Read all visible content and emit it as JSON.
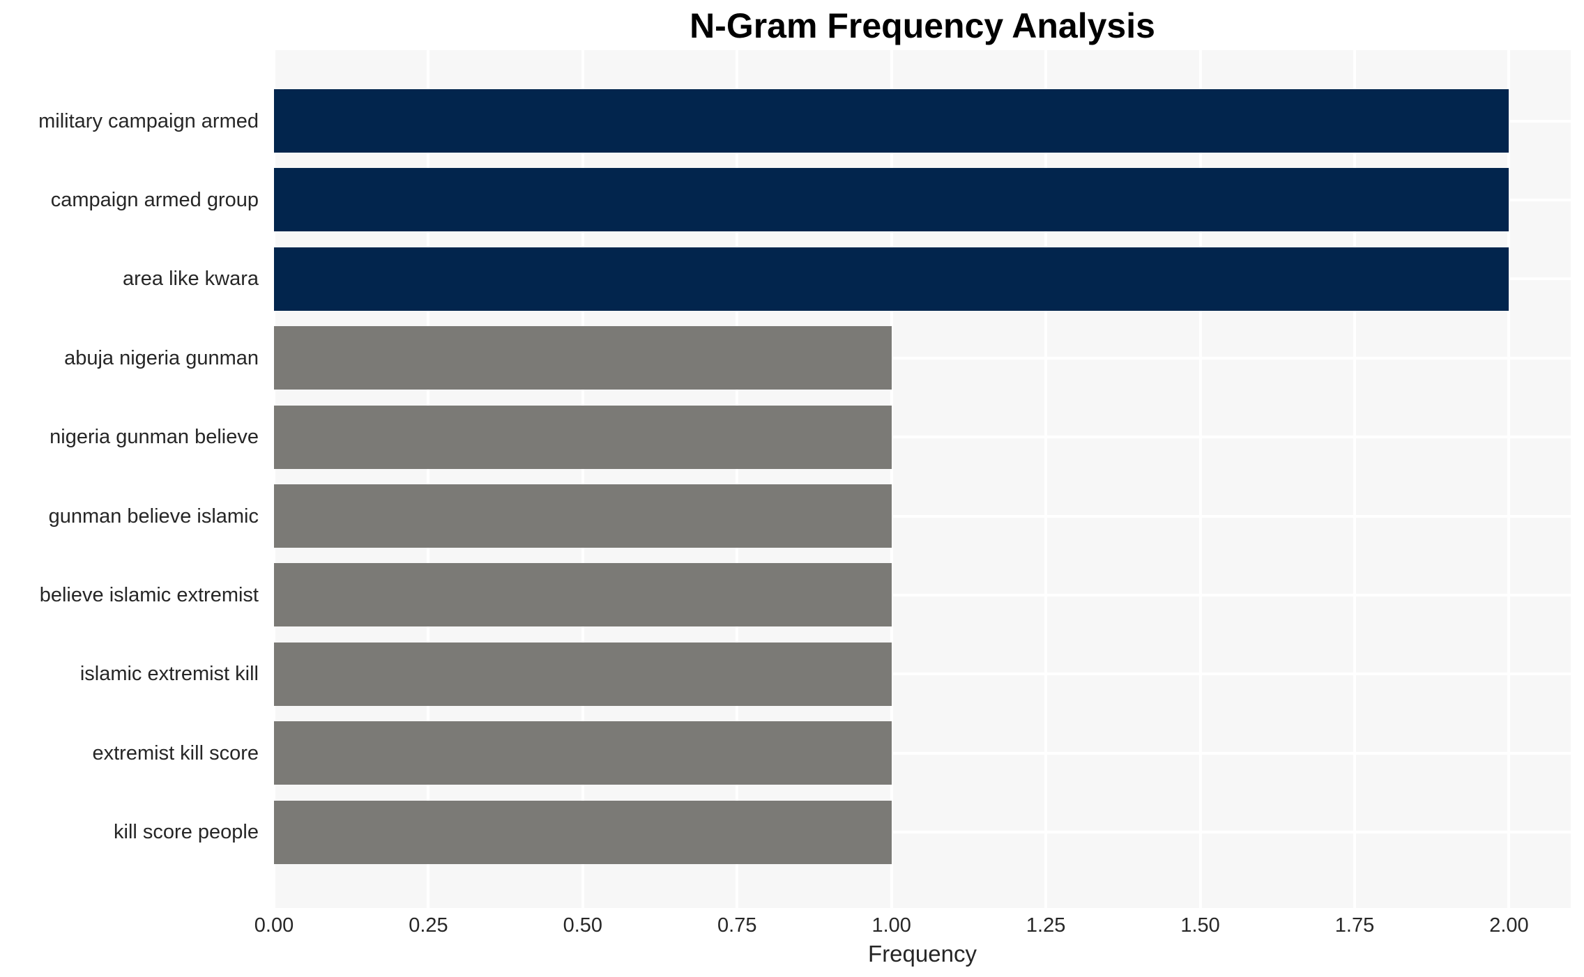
{
  "chart_data": {
    "type": "bar",
    "orientation": "horizontal",
    "title": "N-Gram Frequency Analysis",
    "xlabel": "Frequency",
    "ylabel": "",
    "categories": [
      "military campaign armed",
      "campaign armed group",
      "area like kwara",
      "abuja nigeria gunman",
      "nigeria gunman believe",
      "gunman believe islamic",
      "believe islamic extremist",
      "islamic extremist kill",
      "extremist kill score",
      "kill score people"
    ],
    "values": [
      2,
      2,
      2,
      1,
      1,
      1,
      1,
      1,
      1,
      1
    ],
    "bar_colors": [
      "#02254D",
      "#02254D",
      "#02254D",
      "#7B7A76",
      "#7B7A76",
      "#7B7A76",
      "#7B7A76",
      "#7B7A76",
      "#7B7A76",
      "#7B7A76"
    ],
    "xtick_labels": [
      "0.00",
      "0.25",
      "0.50",
      "0.75",
      "1.00",
      "1.25",
      "1.50",
      "1.75",
      "2.00"
    ],
    "xtick_values": [
      0,
      0.25,
      0.5,
      0.75,
      1.0,
      1.25,
      1.5,
      1.75,
      2.0
    ],
    "xlim": [
      0,
      2.1
    ],
    "grid": true,
    "legend": "none",
    "plot_bg_color": "#F7F7F7",
    "grid_color": "#FFFFFF",
    "text_color": "#262626",
    "title_color": "#000000"
  }
}
